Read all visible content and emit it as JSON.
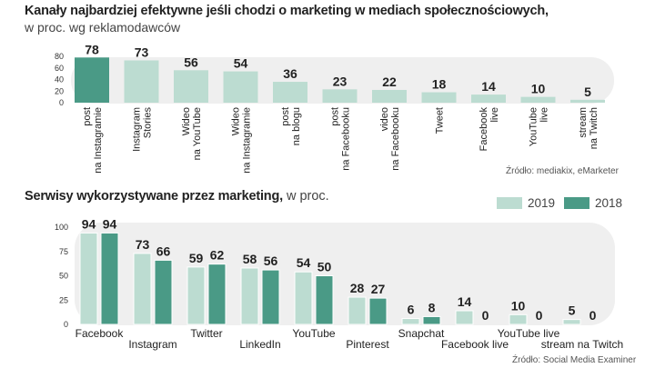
{
  "colors": {
    "highlight": "#4a9a86",
    "primary": "#bcdcd1",
    "series_2018": "#4a9a86",
    "track": "#efefef",
    "text": "#222222"
  },
  "chart_data": [
    {
      "type": "bar",
      "title": "Kanały najbardziej efektywne jeśli chodzi o marketing w mediach społecznościowych,",
      "subtitle": "w proc. wg reklamodawców",
      "source": "Źródło: mediakix, eMarketer",
      "categories": [
        [
          "post",
          "na Instagramie"
        ],
        [
          "Instagram",
          "Stories"
        ],
        [
          "Wideo",
          "na YouTube"
        ],
        [
          "Wideo",
          "na Instagramie"
        ],
        [
          "post",
          "na blogu"
        ],
        [
          "post",
          "na Facebooku"
        ],
        [
          "video",
          "na Facebooku"
        ],
        [
          "Tweet"
        ],
        [
          "Facebook",
          "live"
        ],
        [
          "YouTube",
          "live"
        ],
        [
          "stream",
          "na Twitch"
        ]
      ],
      "values": [
        78,
        73,
        56,
        54,
        36,
        23,
        22,
        18,
        14,
        10,
        5
      ],
      "highlight_index": 0,
      "yticks": [
        0,
        20,
        40,
        60,
        80
      ],
      "ylim": [
        0,
        80
      ]
    },
    {
      "type": "bar",
      "title_bold": "Serwisy wykorzystywane przez marketing,",
      "title_rest": " w proc.",
      "source": "Źródło: Social Media Examiner",
      "categories": [
        "Facebook",
        "Instagram",
        "Twitter",
        "LinkedIn",
        "YouTube",
        "Pinterest",
        "Snapchat",
        "Facebook live",
        "YouTube live",
        "stream na Twitch"
      ],
      "series": [
        {
          "name": "2019",
          "values": [
            94,
            73,
            59,
            58,
            54,
            28,
            6,
            14,
            10,
            5
          ]
        },
        {
          "name": "2018",
          "values": [
            94,
            66,
            62,
            56,
            50,
            27,
            8,
            0,
            0,
            0
          ]
        }
      ],
      "yticks": [
        0,
        25,
        50,
        75,
        100
      ],
      "ylim": [
        0,
        100
      ]
    }
  ]
}
